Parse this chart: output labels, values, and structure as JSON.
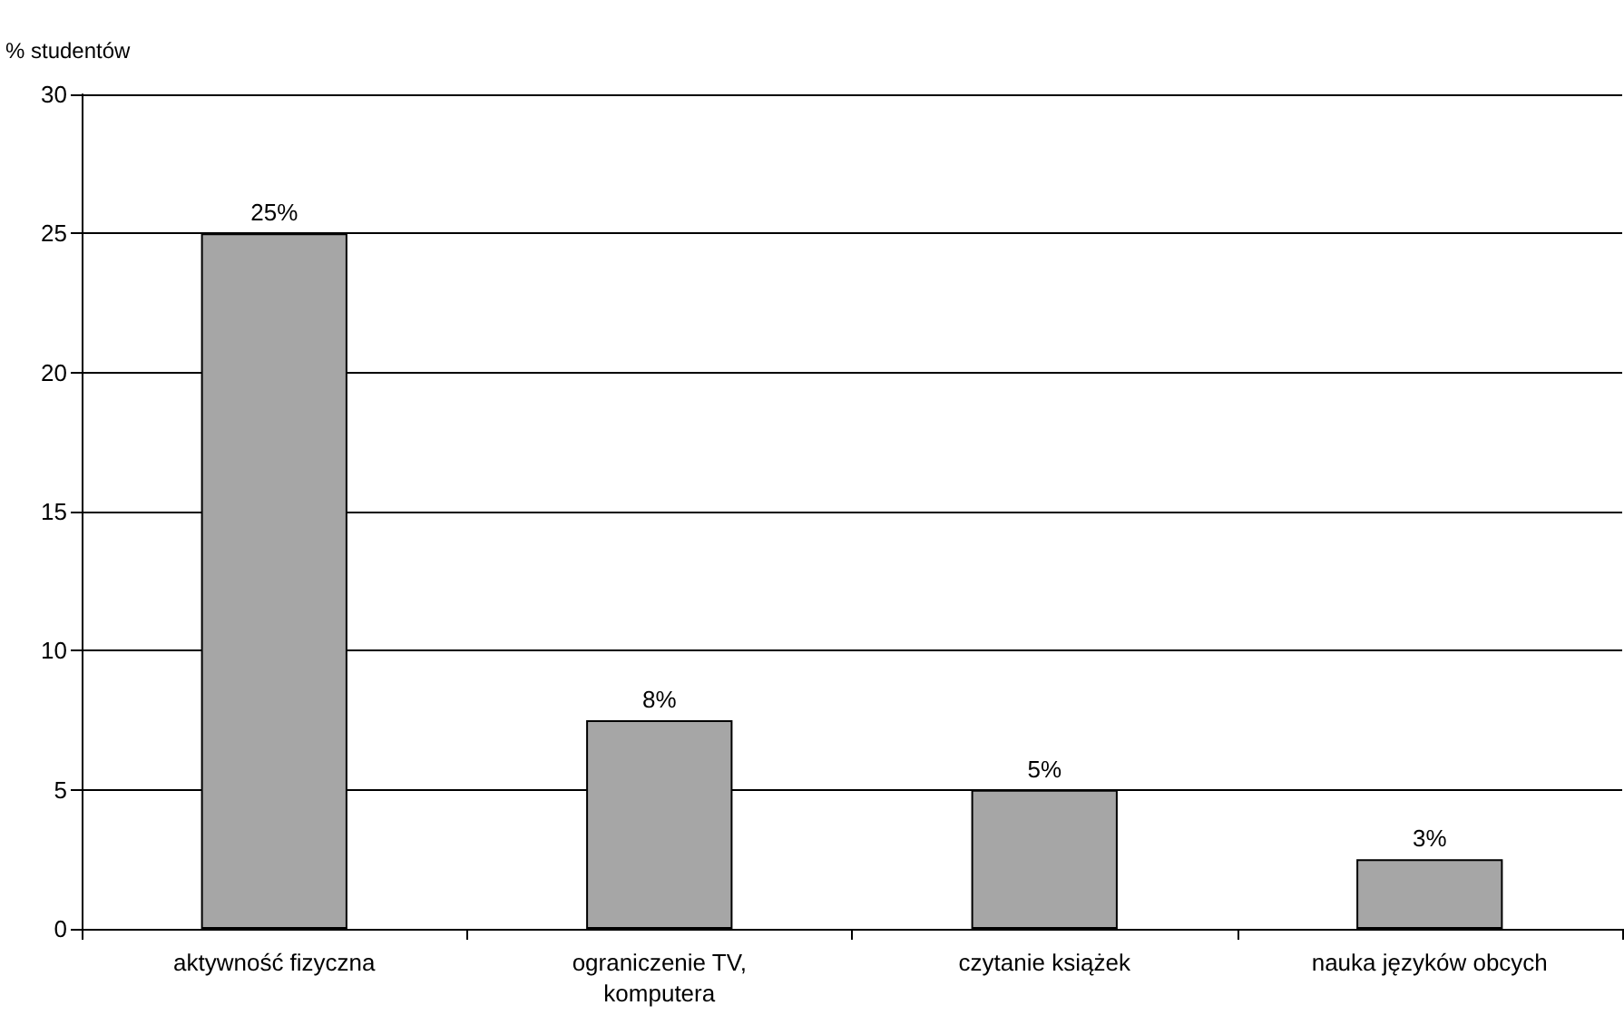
{
  "chart_data": {
    "type": "bar",
    "ylabel": "% studentów",
    "categories": [
      "aktywność fizyczna",
      "ograniczenie TV,\nkomputera",
      "czytanie książek",
      "nauka języków obcych"
    ],
    "values": [
      25,
      7.5,
      5,
      2.5
    ],
    "value_labels": [
      "25%",
      "8%",
      "5%",
      "3%"
    ],
    "color": "#a6a6a6",
    "ylim": [
      0,
      30
    ],
    "yticks": [
      0,
      5,
      10,
      15,
      20,
      25,
      30
    ],
    "grid": "y"
  }
}
